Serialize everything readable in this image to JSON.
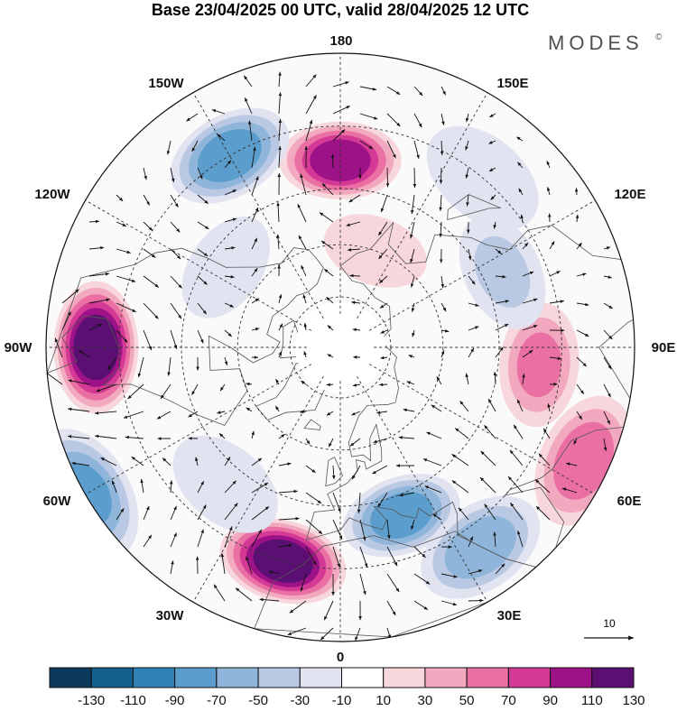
{
  "header": {
    "title": "Base 23/04/2025 00 UTC, valid 28/04/2025 12 UTC",
    "brand": "MODES",
    "brand_mark": "©"
  },
  "map": {
    "projection": "north-polar-stereographic",
    "longitude_labels": {
      "top": "180",
      "top_right": "150E",
      "upper_right": "120E",
      "right": "90E",
      "lower_right": "60E",
      "bottom_right": "30E",
      "bottom": "0",
      "bottom_left": "30W",
      "lower_left": "60W",
      "left": "90W",
      "upper_left": "120W",
      "top_left": "150W"
    },
    "anomaly_centers": [
      {
        "lon": 180,
        "lat": 38,
        "value": 100
      },
      {
        "lon": -150,
        "lat": 30,
        "value": -80
      },
      {
        "lon": -90,
        "lat": 25,
        "value": 125
      },
      {
        "lon": -60,
        "lat": 15,
        "value": -70
      },
      {
        "lon": -15,
        "lat": 30,
        "value": 120
      },
      {
        "lon": 20,
        "lat": 40,
        "value": -80
      },
      {
        "lon": 35,
        "lat": 25,
        "value": -60
      },
      {
        "lon": 65,
        "lat": 20,
        "value": 60
      },
      {
        "lon": 85,
        "lat": 35,
        "value": 50
      },
      {
        "lon": 115,
        "lat": 40,
        "value": -30
      },
      {
        "lon": 140,
        "lat": 30,
        "value": -20
      },
      {
        "lon": -125,
        "lat": 50,
        "value": -20
      },
      {
        "lon": -40,
        "lat": 40,
        "value": -20
      },
      {
        "lon": 160,
        "lat": 60,
        "value": 20
      }
    ]
  },
  "vector_key": {
    "label": "10"
  },
  "colorbar": {
    "labels": [
      "-130",
      "-110",
      "-90",
      "-70",
      "-50",
      "-30",
      "-10",
      "10",
      "30",
      "50",
      "70",
      "90",
      "110",
      "130"
    ],
    "colors": [
      "#0b3a5e",
      "#14608f",
      "#2f82b6",
      "#5b9dcc",
      "#8fb5da",
      "#b9c9e3",
      "#e1e3f0",
      "#ffffff",
      "#f7d6dc",
      "#f2a8be",
      "#ea6fa3",
      "#d43a95",
      "#9e1288",
      "#5c0f73"
    ]
  }
}
